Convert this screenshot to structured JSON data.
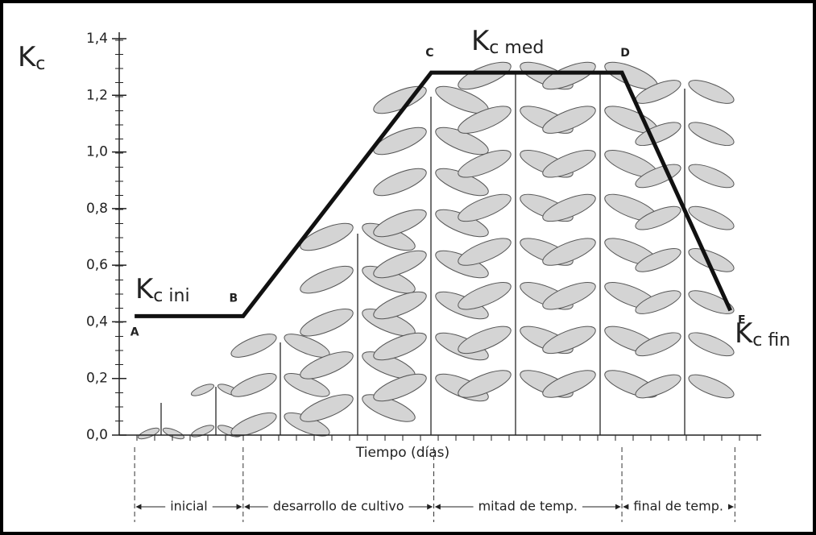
{
  "chart_data": {
    "type": "line",
    "ylabel": {
      "text": "K",
      "sub": "c"
    },
    "xlabel": "Tiempo (días)",
    "x": [
      2.4,
      19.3,
      48.6,
      78.3,
      95.2
    ],
    "xlim": [
      0,
      100
    ],
    "series": [
      {
        "name": "Kc",
        "color": "#111111",
        "values": [
          0.42,
          0.42,
          1.28,
          1.28,
          0.44
        ]
      }
    ],
    "point_labels": [
      "A",
      "B",
      "C",
      "D",
      "E"
    ],
    "curve_labels": [
      {
        "text": "K",
        "sub": "c ini"
      },
      {
        "text": "K",
        "sub": "c med"
      },
      {
        "text": "K",
        "sub": "c fin"
      }
    ],
    "ylim": [
      0,
      1.4
    ],
    "yticks": [
      {
        "value": 0,
        "label": "0,0"
      },
      {
        "value": 0.2,
        "label": "0,2"
      },
      {
        "value": 0.4,
        "label": "0,4"
      },
      {
        "value": 0.6,
        "label": "0,6"
      },
      {
        "value": 0.8,
        "label": "0,8"
      },
      {
        "value": 1.0,
        "label": "1,0"
      },
      {
        "value": 1.2,
        "label": "1,2"
      },
      {
        "value": 1.4,
        "label": "1,4"
      }
    ],
    "stage_boundaries": [
      2.4,
      19.3,
      49.0,
      78.3,
      95.9
    ],
    "stages": [
      "inicial",
      "desarrollo de cultivo",
      "mitad de temp.",
      "final de temp."
    ]
  }
}
